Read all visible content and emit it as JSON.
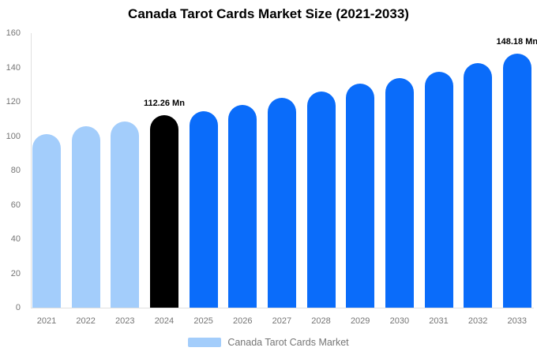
{
  "chart_data": {
    "type": "bar",
    "title": "Canada Tarot Cards Market Size (2021-2033)",
    "categories": [
      "2021",
      "2022",
      "2023",
      "2024",
      "2025",
      "2026",
      "2027",
      "2028",
      "2029",
      "2030",
      "2031",
      "2032",
      "2033"
    ],
    "values": [
      101.1,
      105.7,
      108.5,
      112.26,
      114.3,
      118.0,
      122.3,
      126.0,
      130.4,
      134.0,
      137.6,
      142.5,
      148.18
    ],
    "value_unit": "Mn",
    "xlabel": "",
    "ylabel": "",
    "ylim": [
      0,
      160
    ],
    "ytick_step": 20,
    "yticks": [
      0,
      20,
      40,
      60,
      80,
      100,
      120,
      140,
      160
    ],
    "grid": false,
    "legend": {
      "label": "Canada Tarot Cards Market",
      "position": "bottom"
    },
    "bar_roles": [
      "historical",
      "historical",
      "historical",
      "base-year",
      "forecast",
      "forecast",
      "forecast",
      "forecast",
      "forecast",
      "forecast",
      "forecast",
      "forecast",
      "forecast"
    ],
    "annotations": [
      {
        "category": "2024",
        "text": "112.26 Mn"
      },
      {
        "category": "2033",
        "text": "148.18 Mn"
      }
    ],
    "colors": {
      "historical": "#a3cdfb",
      "base-year": "#000000",
      "forecast": "#0a6cfa",
      "axis_line": "#e0e0e0",
      "tick_label": "#757575",
      "annotation_text": "#000000",
      "legend_text": "#757575",
      "background": "#ffffff"
    }
  }
}
